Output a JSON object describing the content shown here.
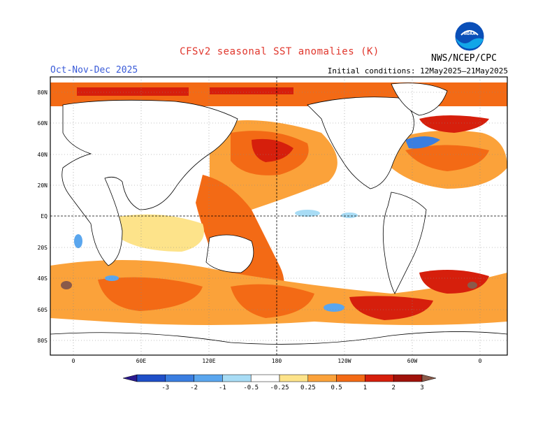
{
  "title": "CFSv2 seasonal SST anomalies (K)",
  "season": "Oct-Nov-Dec 2025",
  "initial_conditions": "Initial conditions: 12May2025–21May2025",
  "agency": "NWS/NCEP/CPC",
  "logo_text": "NOAA",
  "lat_labels": [
    "80N",
    "60N",
    "40N",
    "20N",
    "EQ",
    "20S",
    "40S",
    "60S",
    "80S"
  ],
  "lon_labels": [
    "0",
    "60E",
    "120E",
    "180",
    "120W",
    "60W",
    "0"
  ],
  "colorbar": {
    "labels": [
      "-3",
      "-2",
      "-1",
      "-0.5",
      "-0.25",
      "0.25",
      "0.5",
      "1",
      "2",
      "3"
    ],
    "colors": [
      "#2b1a8f",
      "#1f4fc8",
      "#3a7ee0",
      "#5aa6ee",
      "#a8dcf5",
      "#ffffff",
      "#fde38a",
      "#fba23a",
      "#f36a15",
      "#d61f0c",
      "#a0120a",
      "#8a5a4a"
    ]
  }
}
